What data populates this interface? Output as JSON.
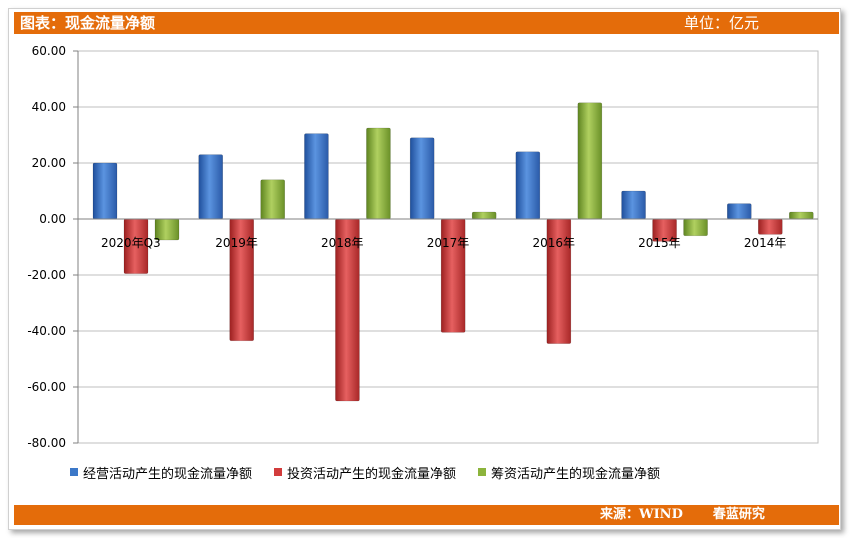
{
  "header": {
    "title": "图表：现金流量净额",
    "unit": "单位：亿元"
  },
  "footer": {
    "source": "来源：WIND",
    "brand": "春蓝研究"
  },
  "chart_data": {
    "type": "bar",
    "categories": [
      "2020年Q3",
      "2019年",
      "2018年",
      "2017年",
      "2016年",
      "2015年",
      "2014年"
    ],
    "series": [
      {
        "name": "经营活动产生的现金流量净额",
        "color": "#3c78c8",
        "values": [
          20,
          23,
          30.5,
          29,
          24,
          10,
          5.5
        ]
      },
      {
        "name": "投资活动产生的现金流量净额",
        "color": "#d23c3c",
        "values": [
          -19.5,
          -43.5,
          -65,
          -40.5,
          -44.5,
          -8,
          -5.5
        ]
      },
      {
        "name": "筹资活动产生的现金流量净额",
        "color": "#8cb43c",
        "values": [
          -7.5,
          14,
          32.5,
          2.5,
          41.5,
          -6,
          2.5
        ]
      }
    ],
    "yticks": [
      "60.00",
      "40.00",
      "20.00",
      "0.00",
      "-20.00",
      "-40.00",
      "-60.00",
      "-80.00"
    ],
    "ylim": [
      -80,
      60
    ],
    "grid": true,
    "legend_position": "bottom"
  }
}
